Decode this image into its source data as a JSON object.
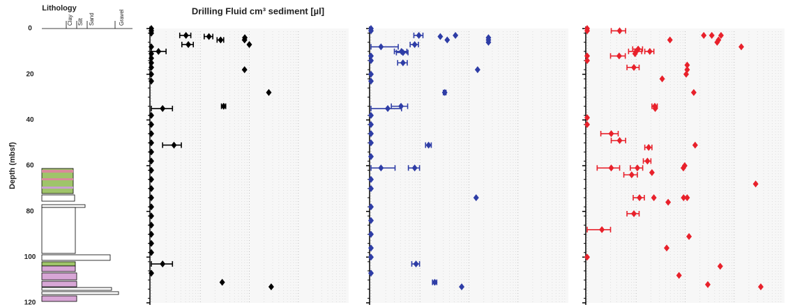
{
  "chart_data": {
    "type": "scatter",
    "title": "Drilling Fluid cm³ sediment [µl]",
    "ylabel": "Depth (mbsf)",
    "ylim": [
      0,
      120
    ],
    "yinverted": true,
    "yticks": [
      0,
      20,
      40,
      60,
      80,
      100,
      120
    ],
    "xlim": [
      0.1,
      1000
    ],
    "xscale": "log",
    "grid": true,
    "lithology": {
      "title": "Lithology",
      "classes": [
        "Clay",
        "Silt",
        "Sand",
        "Gravel"
      ]
    },
    "series": [
      {
        "color": "#000000",
        "y": [
          0,
          1,
          2,
          3,
          3.5,
          4,
          5,
          5,
          7,
          7,
          8,
          10,
          11,
          13,
          15,
          17,
          18,
          20,
          23,
          28,
          34,
          35,
          38,
          42,
          46,
          50,
          51,
          54,
          58,
          62,
          66,
          70,
          74,
          78,
          82,
          86,
          90,
          94,
          98,
          103,
          107,
          111,
          113
        ],
        "x": [
          0.1,
          0.1,
          0.1,
          0.51,
          1.5,
          8.1,
          2.6,
          8,
          0.57,
          10,
          0.1,
          0.14,
          0.1,
          0.1,
          0.1,
          0.1,
          8,
          0.1,
          0.1,
          25,
          3.0,
          0.17,
          0.1,
          0.1,
          0.1,
          0.1,
          0.29,
          0.1,
          0.1,
          0.1,
          0.1,
          0.1,
          0.1,
          0.1,
          0.1,
          0.1,
          0.1,
          0.1,
          0.1,
          0.17,
          0.1,
          2.8,
          28
        ],
        "xerr": [
          null,
          null,
          null,
          0.13,
          0.3,
          null,
          0.4,
          null,
          0.15,
          null,
          null,
          0.06,
          null,
          null,
          null,
          null,
          null,
          null,
          null,
          null,
          0.3,
          0.1,
          null,
          null,
          null,
          null,
          0.12,
          null,
          null,
          null,
          null,
          null,
          null,
          null,
          null,
          null,
          null,
          null,
          null,
          0.1,
          null,
          null,
          null
        ]
      },
      {
        "color": "#2e3da6",
        "y": [
          0,
          1,
          3,
          3,
          3.5,
          4,
          5,
          5,
          6,
          7,
          8,
          10,
          10.5,
          12,
          14,
          15,
          18,
          20,
          23,
          28,
          34,
          35,
          38,
          42,
          46,
          50,
          51,
          56,
          61,
          61,
          66,
          70,
          74,
          78,
          84,
          90,
          96,
          100,
          103,
          107,
          111,
          113
        ],
        "x": [
          0.1,
          0.1,
          0.95,
          5.3,
          2.6,
          25,
          3.6,
          25,
          25,
          0.78,
          0.16,
          0.42,
          0.45,
          0.1,
          0.1,
          0.45,
          15,
          0.1,
          0.1,
          3.2,
          0.41,
          0.22,
          0.1,
          0.1,
          0.1,
          0.1,
          1.5,
          0.1,
          0.78,
          0.16,
          0.1,
          0.1,
          14,
          0.1,
          0.1,
          0.1,
          0.1,
          0.1,
          0.83,
          0.1,
          2.0,
          7.1
        ],
        "xerr": [
          null,
          null,
          0.2,
          null,
          null,
          null,
          null,
          null,
          null,
          0.15,
          0.2,
          0.12,
          0.12,
          null,
          null,
          0.1,
          null,
          null,
          null,
          0.2,
          0.15,
          0.2,
          null,
          null,
          null,
          null,
          0.2,
          null,
          0.2,
          0.15,
          null,
          null,
          null,
          null,
          null,
          null,
          null,
          null,
          0.15,
          null,
          0.2,
          null
        ]
      },
      {
        "color": "#e8212b",
        "y": [
          0,
          1,
          1,
          3,
          3,
          3,
          5,
          5,
          6,
          8,
          9,
          10,
          10,
          11,
          12,
          12,
          14,
          16,
          17,
          18,
          20,
          22,
          28,
          34,
          35,
          39,
          42,
          46,
          49,
          51,
          52,
          58,
          60,
          61,
          61,
          61,
          63,
          64,
          68,
          74,
          74,
          74,
          74,
          76,
          81,
          88,
          91,
          96,
          100,
          104,
          108,
          112,
          113
        ],
        "x": [
          0.1,
          0.1,
          0.46,
          35,
          24,
          54,
          4.9,
          48,
          45,
          140,
          1.1,
          1.9,
          1.0,
          0.95,
          0.1,
          0.45,
          0.1,
          11,
          0.9,
          11,
          10.5,
          3.4,
          15,
          2.4,
          2.45,
          0.1,
          0.1,
          0.31,
          0.46,
          16,
          1.8,
          1.7,
          9.8,
          0.31,
          1.06,
          9.2,
          2.1,
          0.81,
          275,
          1.17,
          2.3,
          9.3,
          11,
          4.5,
          0.9,
          0.2,
          12,
          4.2,
          0.1,
          52,
          7.5,
          29,
          350
        ],
        "xerr": [
          null,
          null,
          0.15,
          null,
          null,
          null,
          null,
          null,
          null,
          null,
          0.25,
          0.4,
          0.3,
          null,
          null,
          0.15,
          null,
          null,
          0.25,
          null,
          null,
          null,
          null,
          0.3,
          null,
          null,
          null,
          0.12,
          0.15,
          null,
          0.3,
          0.3,
          null,
          0.15,
          0.3,
          null,
          null,
          0.25,
          null,
          0.3,
          null,
          null,
          null,
          null,
          0.25,
          0.1,
          null,
          null,
          null,
          null,
          null,
          null,
          null
        ]
      }
    ]
  }
}
